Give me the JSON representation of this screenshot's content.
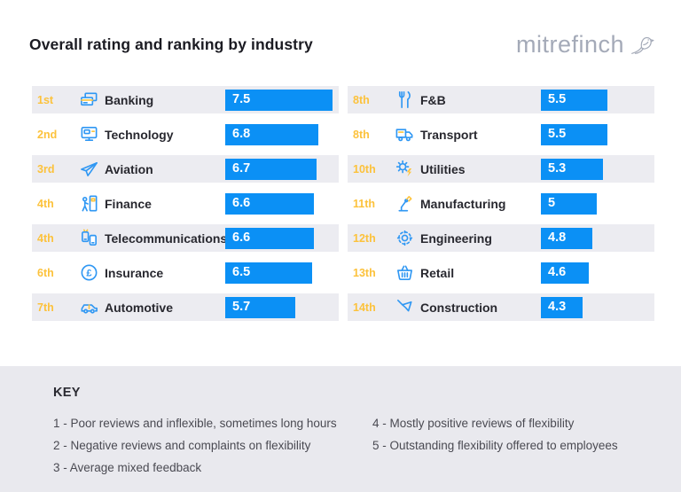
{
  "header": {
    "title": "Overall rating and ranking by industry",
    "logo_text": "mitrefinch",
    "logo_icon": "finch-bird-icon"
  },
  "colors": {
    "bar_blue": "#0b90f5",
    "rank_gold": "#fcc23c",
    "row_alt_bg": "#ececf1",
    "key_bg": "#e9e9ee",
    "logo_gray": "#a4aab8",
    "icon_blue": "#2f97f3",
    "icon_accent_yellow": "#ffc43d"
  },
  "chart_data": {
    "type": "bar",
    "orientation": "horizontal",
    "title": "Overall rating and ranking by industry",
    "value_scale": [
      1,
      7.5
    ],
    "layout": "two-column ranked list, bars left-aligned with value label inside",
    "items": [
      {
        "rank": "1st",
        "industry": "Banking",
        "rating": 7.5,
        "icon": "bank-card-icon"
      },
      {
        "rank": "2nd",
        "industry": "Technology",
        "rating": 6.8,
        "icon": "computer-monitor-icon"
      },
      {
        "rank": "3rd",
        "industry": "Aviation",
        "rating": 6.7,
        "icon": "plane-icon"
      },
      {
        "rank": "4th",
        "industry": "Finance",
        "rating": 6.6,
        "icon": "atm-person-icon"
      },
      {
        "rank": "4th",
        "industry": "Telecommunications",
        "rating": 6.6,
        "icon": "mobile-phones-icon"
      },
      {
        "rank": "6th",
        "industry": "Insurance",
        "rating": 6.5,
        "icon": "pound-circle-icon"
      },
      {
        "rank": "7th",
        "industry": "Automotive",
        "rating": 5.7,
        "icon": "car-icon"
      },
      {
        "rank": "8th",
        "industry": "F&B",
        "rating": 5.5,
        "icon": "fork-knife-icon"
      },
      {
        "rank": "8th",
        "industry": "Transport",
        "rating": 5.5,
        "icon": "truck-icon"
      },
      {
        "rank": "10th",
        "industry": "Utilities",
        "rating": 5.3,
        "icon": "sun-energy-icon"
      },
      {
        "rank": "11th",
        "industry": "Manufacturing",
        "rating": 5,
        "icon": "robot-arm-icon"
      },
      {
        "rank": "12th",
        "industry": "Engineering",
        "rating": 4.8,
        "icon": "gear-icon"
      },
      {
        "rank": "13th",
        "industry": "Retail",
        "rating": 4.6,
        "icon": "shopping-basket-icon"
      },
      {
        "rank": "14th",
        "industry": "Construction",
        "rating": 4.3,
        "icon": "trowel-icon"
      }
    ]
  },
  "key": {
    "heading": "KEY",
    "items_left": [
      "1 - Poor reviews and inflexible, sometimes long hours",
      "2 - Negative reviews and complaints on flexibility",
      "3 - Average mixed feedback"
    ],
    "items_right": [
      "4 - Mostly positive reviews of flexibility",
      "5 - Outstanding flexibility offered to employees"
    ]
  }
}
